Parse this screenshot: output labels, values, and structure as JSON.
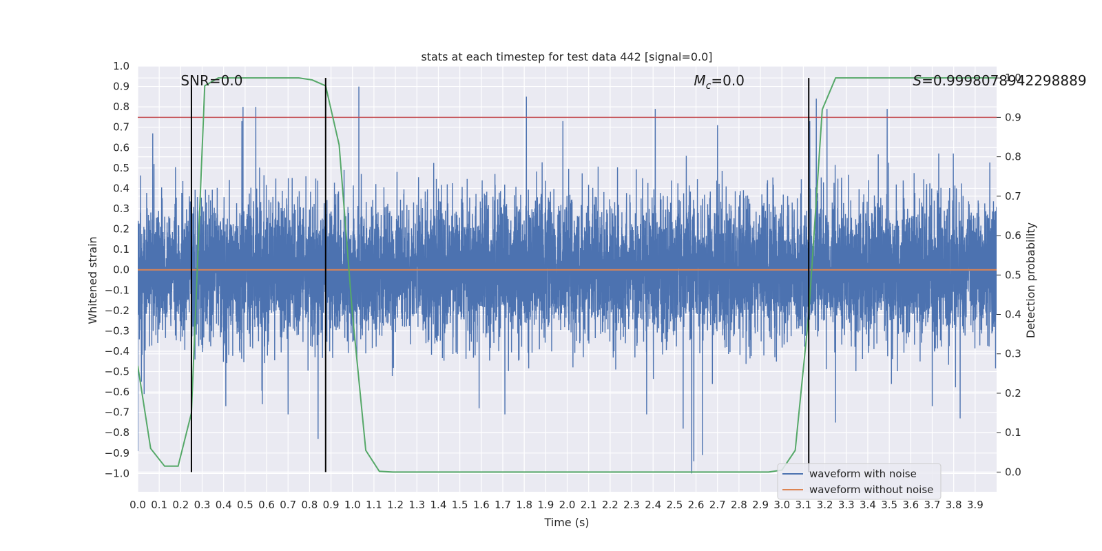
{
  "chart_data": {
    "type": "line",
    "title": "stats at each timestep for test data 442 [signal=0.0]",
    "xlabel": "Time (s)",
    "ylabel": "Whitened strain",
    "y2label": "Detection probability",
    "xlim": [
      0.0,
      4.0
    ],
    "ylim": [
      -1.09,
      1.0
    ],
    "y2lim": [
      -0.05,
      1.03
    ],
    "xticks": [
      "0.0",
      "0.1",
      "0.2",
      "0.3",
      "0.4",
      "0.5",
      "0.6",
      "0.7",
      "0.8",
      "0.9",
      "1.0",
      "1.1",
      "1.2",
      "1.3",
      "1.4",
      "1.5",
      "1.6",
      "1.7",
      "1.8",
      "1.9",
      "2.0",
      "2.1",
      "2.2",
      "2.3",
      "2.4",
      "2.5",
      "2.6",
      "2.7",
      "2.8",
      "2.9",
      "3.0",
      "3.1",
      "3.2",
      "3.3",
      "3.4",
      "3.5",
      "3.6",
      "3.7",
      "3.8",
      "3.9"
    ],
    "yticks": [
      "1.0",
      "0.9",
      "0.8",
      "0.7",
      "0.6",
      "0.5",
      "0.4",
      "0.3",
      "0.2",
      "0.1",
      "0.0",
      "−0.1",
      "−0.2",
      "−0.3",
      "−0.4",
      "−0.5",
      "−0.6",
      "−0.7",
      "−0.8",
      "−0.9",
      "−1.0"
    ],
    "y2ticks": [
      "1.0",
      "0.9",
      "0.8",
      "0.7",
      "0.6",
      "0.5",
      "0.4",
      "0.3",
      "0.2",
      "0.1",
      "0.0"
    ],
    "grid": true,
    "legend_position": "bottom-right",
    "series": [
      {
        "name": "waveform with noise",
        "color": "#4c72b0",
        "axis": "left",
        "kind": "noise",
        "samples": 8192,
        "amplitude_typical": 0.3,
        "amplitude_max": 1.0,
        "spikes": [
          {
            "x": 0.485,
            "y": 0.73
          },
          {
            "x": 0.49,
            "y": 0.8
          },
          {
            "x": 0.55,
            "y": 0.8
          },
          {
            "x": 1.03,
            "y": 0.9
          },
          {
            "x": 1.59,
            "y": 0.84
          },
          {
            "x": 1.81,
            "y": 0.85
          },
          {
            "x": 1.98,
            "y": 0.73
          },
          {
            "x": 2.41,
            "y": 0.79
          },
          {
            "x": 2.7,
            "y": 0.71
          },
          {
            "x": 3.13,
            "y": 0.73
          },
          {
            "x": 3.16,
            "y": 0.84
          },
          {
            "x": 3.21,
            "y": 0.79
          },
          {
            "x": 3.49,
            "y": 0.79
          },
          {
            "x": 0.07,
            "y": 0.67
          },
          {
            "x": 0.84,
            "y": -0.83
          },
          {
            "x": 0.41,
            "y": -0.67
          },
          {
            "x": 0.58,
            "y": -0.66
          },
          {
            "x": 0.7,
            "y": -0.71
          },
          {
            "x": 1.59,
            "y": -0.68
          },
          {
            "x": 1.71,
            "y": -0.71
          },
          {
            "x": 2.37,
            "y": -0.71
          },
          {
            "x": 2.58,
            "y": -1.0
          },
          {
            "x": 2.59,
            "y": -0.94
          },
          {
            "x": 2.63,
            "y": -0.91
          },
          {
            "x": 2.54,
            "y": -0.78
          },
          {
            "x": 3.25,
            "y": -0.75
          },
          {
            "x": 3.7,
            "y": -0.67
          },
          {
            "x": 3.83,
            "y": -0.73
          },
          {
            "x": 0.03,
            "y": -0.61
          },
          {
            "x": 0.0,
            "y": -0.89
          }
        ]
      },
      {
        "name": "waveform without noise",
        "color": "#dd8452",
        "axis": "left",
        "x": [
          0.0,
          4.0
        ],
        "y": [
          0.0,
          0.0
        ]
      },
      {
        "name": "detection probability",
        "color": "#55a868",
        "axis": "right",
        "x": [
          0.0,
          0.06,
          0.125,
          0.188,
          0.25,
          0.312,
          0.375,
          0.438,
          0.5,
          0.562,
          0.625,
          0.688,
          0.75,
          0.812,
          0.875,
          0.938,
          1.0,
          1.062,
          1.125,
          1.188,
          1.25,
          1.5,
          2.0,
          2.5,
          2.875,
          2.938,
          3.0,
          3.062,
          3.125,
          3.188,
          3.25,
          3.312,
          3.5,
          3.75,
          4.0
        ],
        "y": [
          0.27,
          0.06,
          0.015,
          0.015,
          0.15,
          0.98,
          1.0,
          1.0,
          1.0,
          1.0,
          1.0,
          1.0,
          1.0,
          0.995,
          0.98,
          0.83,
          0.4,
          0.055,
          0.002,
          0.0,
          0.0,
          0.0,
          0.0,
          0.0,
          0.0,
          0.0,
          0.005,
          0.055,
          0.4,
          0.92,
          1.0,
          1.0,
          1.0,
          1.0,
          1.0
        ]
      }
    ],
    "hlines": [
      {
        "y": 0.9,
        "axis": "right",
        "color": "#c44e52"
      }
    ],
    "vlines": [
      {
        "x": 0.25,
        "color": "#000000"
      },
      {
        "x": 0.875,
        "color": "#000000"
      },
      {
        "x": 3.125,
        "color": "#000000"
      }
    ],
    "annotations": [
      {
        "text": "SNR=0.0",
        "x": 0.2
      },
      {
        "text": "Mc=0.0",
        "main": "M",
        "sub": "c",
        "rest": "=0.0",
        "x": 2.59
      },
      {
        "text": "S=0.9998078942298889",
        "x": 3.61
      }
    ]
  }
}
